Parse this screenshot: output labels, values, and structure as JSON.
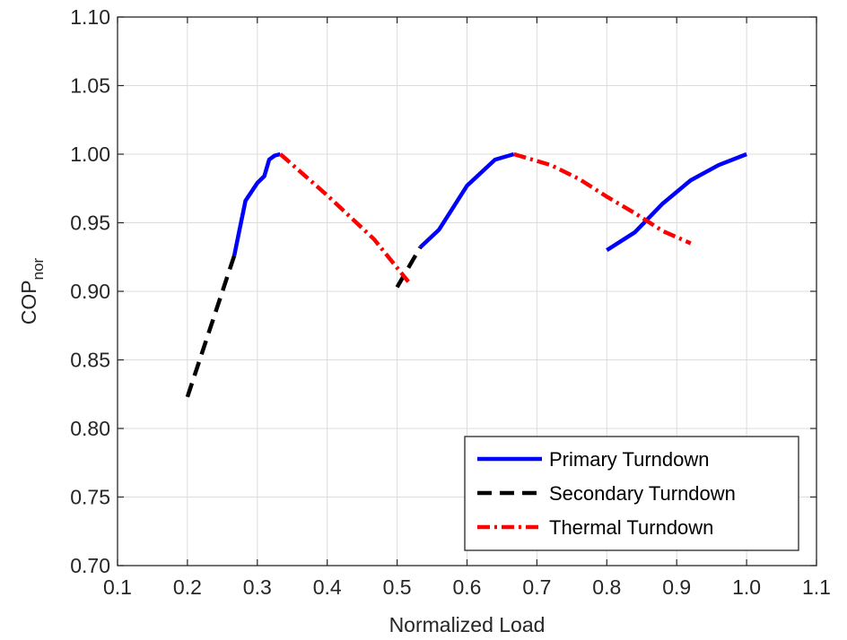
{
  "chart_data": {
    "type": "line",
    "xlabel": "Normalized Load",
    "ylabel": {
      "main": "COP",
      "subscript": "nor"
    },
    "xlim": [
      0.1,
      1.1
    ],
    "ylim": [
      0.7,
      1.1
    ],
    "xticks": [
      "0.1",
      "0.2",
      "0.3",
      "0.4",
      "0.5",
      "0.6",
      "0.7",
      "0.8",
      "0.9",
      "1.0",
      "1.1"
    ],
    "yticks": [
      "0.70",
      "0.75",
      "0.80",
      "0.85",
      "0.90",
      "0.95",
      "1.00",
      "1.05",
      "1.10"
    ],
    "grid": true,
    "legend_position": "bottom-right",
    "legend": [
      {
        "label": "Primary Turndown",
        "color": "#0000ff",
        "style": "solid"
      },
      {
        "label": "Secondary Turndown",
        "color": "#000000",
        "style": "dashed"
      },
      {
        "label": "Thermal Turndown",
        "color": "#ff0000",
        "style": "dash-dot"
      }
    ],
    "series": [
      {
        "legend_index": 0,
        "points": [
          [
            0.267,
            0.926
          ],
          [
            0.275,
            0.946
          ],
          [
            0.283,
            0.966
          ],
          [
            0.3,
            0.979
          ],
          [
            0.31,
            0.984
          ],
          [
            0.317,
            0.996
          ],
          [
            0.325,
            0.999
          ],
          [
            0.333,
            1.0
          ]
        ]
      },
      {
        "legend_index": 0,
        "points": [
          [
            0.533,
            0.932
          ],
          [
            0.56,
            0.945
          ],
          [
            0.6,
            0.977
          ],
          [
            0.64,
            0.996
          ],
          [
            0.667,
            1.0
          ]
        ]
      },
      {
        "legend_index": 0,
        "points": [
          [
            0.8,
            0.93
          ],
          [
            0.84,
            0.943
          ],
          [
            0.88,
            0.964
          ],
          [
            0.92,
            0.981
          ],
          [
            0.96,
            0.992
          ],
          [
            1.0,
            1.0
          ]
        ]
      },
      {
        "legend_index": 1,
        "points": [
          [
            0.2,
            0.823
          ],
          [
            0.267,
            0.926
          ]
        ]
      },
      {
        "legend_index": 1,
        "points": [
          [
            0.5,
            0.903
          ],
          [
            0.533,
            0.932
          ]
        ]
      },
      {
        "legend_index": 2,
        "points": [
          [
            0.333,
            1.0
          ],
          [
            0.4,
            0.97
          ],
          [
            0.467,
            0.938
          ],
          [
            0.516,
            0.907
          ]
        ]
      },
      {
        "legend_index": 2,
        "points": [
          [
            0.667,
            1.0
          ],
          [
            0.72,
            0.992
          ],
          [
            0.76,
            0.982
          ],
          [
            0.8,
            0.969
          ],
          [
            0.84,
            0.957
          ],
          [
            0.88,
            0.944
          ],
          [
            0.92,
            0.935
          ]
        ]
      }
    ]
  }
}
